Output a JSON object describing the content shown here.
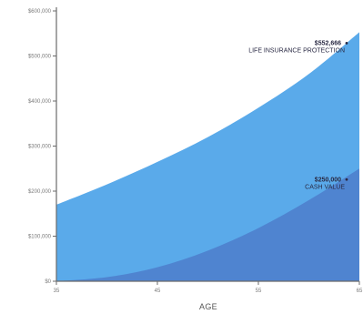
{
  "chart_data": {
    "type": "area",
    "title": "",
    "xlabel": "AGE",
    "ylabel": "",
    "x": [
      35,
      40,
      45,
      50,
      55,
      60,
      65
    ],
    "xlim": [
      35,
      65
    ],
    "ylim": [
      0,
      600000
    ],
    "x_ticks": [
      "35",
      "45",
      "55",
      "65"
    ],
    "x_tick_values": [
      35,
      45,
      55,
      65
    ],
    "y_ticks": [
      "$0",
      "$100,000",
      "$200,000",
      "$300,000",
      "$400,000",
      "$500,000",
      "$600,000"
    ],
    "y_tick_values": [
      0,
      100000,
      200000,
      300000,
      400000,
      500000,
      600000
    ],
    "grid": false,
    "series": [
      {
        "name": "LIFE INSURANCE PROTECTION",
        "values": [
          170000,
          215000,
          265000,
          320000,
          385000,
          460000,
          552666
        ],
        "color": "#5aaaea",
        "annotation": {
          "value": "$552,666"
        }
      },
      {
        "name": "CASH VALUE",
        "values": [
          0,
          9000,
          31000,
          68000,
          118000,
          180000,
          250000
        ],
        "color": "#4f84d0",
        "annotation": {
          "value": "$250,000"
        }
      }
    ]
  }
}
